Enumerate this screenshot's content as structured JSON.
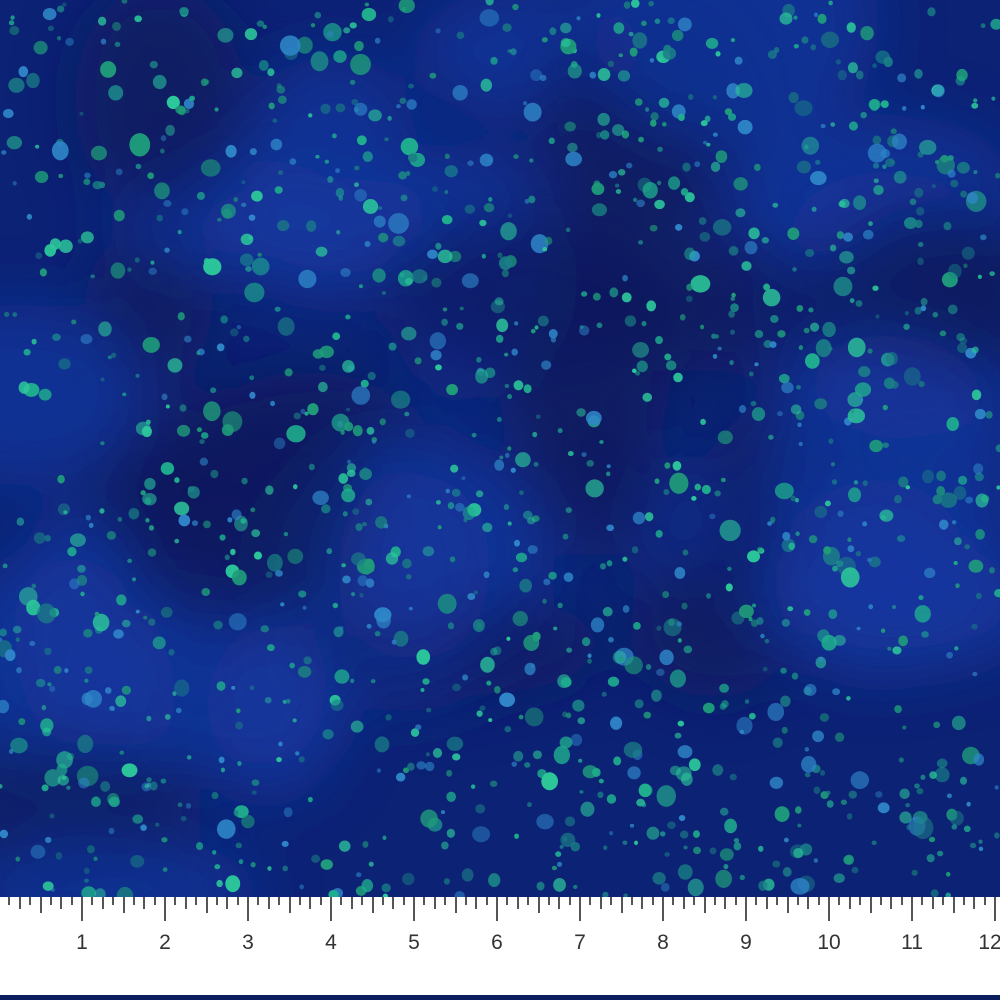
{
  "image": {
    "subject": "fabric swatch",
    "colors": {
      "background_dark": "#0a1a5c",
      "background_mid": "#1638a0",
      "dot_teal": "#1fae8e",
      "dot_green": "#2cc79a",
      "dot_blue": "#2f86c8",
      "ruler": "#ffffff"
    }
  },
  "ruler": {
    "unit": "inch",
    "labels": [
      "1",
      "2",
      "3",
      "4",
      "5",
      "6",
      "7",
      "8",
      "9",
      "10",
      "11",
      "12"
    ],
    "subdivisions": 8
  }
}
